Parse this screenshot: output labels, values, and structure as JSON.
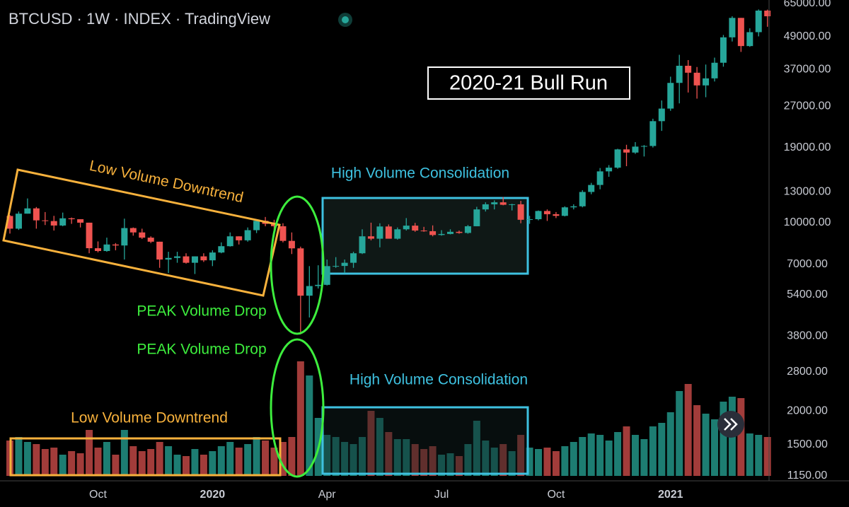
{
  "chart_data": {
    "type": "candlestick",
    "title": "BTCUSD · 1W · INDEX · TradingView",
    "log_scale": true,
    "grid": false,
    "up_color": "#26a69a",
    "down_color": "#ef5350",
    "volume_up_color": "#1d7d72",
    "volume_down_color": "#a23c3a",
    "ylim": [
      1150,
      65000
    ],
    "yticks": [
      {
        "value": 1150,
        "label": "1150.00"
      },
      {
        "value": 1500,
        "label": "1500.00"
      },
      {
        "value": 2000,
        "label": "2000.00"
      },
      {
        "value": 2800,
        "label": "2800.00"
      },
      {
        "value": 3800,
        "label": "3800.00"
      },
      {
        "value": 5400,
        "label": "5400.00"
      },
      {
        "value": 7000,
        "label": "7000.00"
      },
      {
        "value": 10000,
        "label": "10000.00"
      },
      {
        "value": 13000,
        "label": "13000.00"
      },
      {
        "value": 19000,
        "label": "19000.00"
      },
      {
        "value": 27000,
        "label": "27000.00"
      },
      {
        "value": 37000,
        "label": "37000.00"
      },
      {
        "value": 49000,
        "label": "49000.00"
      },
      {
        "value": 65000,
        "label": "65000.00"
      }
    ],
    "categories": [
      null,
      null,
      null,
      null,
      null,
      null,
      null,
      null,
      null,
      null,
      "Oct",
      null,
      null,
      null,
      null,
      null,
      null,
      null,
      null,
      null,
      null,
      null,
      null,
      "2020",
      null,
      null,
      null,
      null,
      null,
      null,
      null,
      null,
      null,
      null,
      null,
      null,
      "Apr",
      null,
      null,
      null,
      null,
      null,
      null,
      null,
      null,
      null,
      null,
      null,
      null,
      "Jul",
      null,
      null,
      null,
      null,
      null,
      null,
      null,
      null,
      null,
      null,
      null,
      null,
      "Oct",
      null,
      null,
      null,
      null,
      null,
      null,
      null,
      null,
      null,
      null,
      null,
      null,
      "2021",
      null,
      null,
      null,
      null,
      null,
      null,
      null,
      null,
      null,
      null,
      null
    ],
    "open": [
      10590,
      9500,
      10800,
      11300,
      10200,
      10140,
      9760,
      10380,
      10300,
      10000,
      8040,
      7850,
      8300,
      8230,
      9550,
      9200,
      8800,
      8500,
      7300,
      7400,
      7500,
      7100,
      7500,
      7250,
      7750,
      8180,
      8900,
      8600,
      9380,
      10160,
      9900,
      9700,
      8560,
      8030,
      5360,
      5820,
      5880,
      6900,
      6910,
      7100,
      7700,
      8900,
      8720,
      9680,
      8720,
      9450,
      9750,
      9350,
      9300,
      9000,
      9080,
      9250,
      9160,
      9700,
      11200,
      11700,
      11900,
      11650,
      11700,
      10250,
      10300,
      11050,
      10750,
      10600,
      11400,
      11500,
      13000,
      13800,
      15500,
      16000,
      18700,
      18200,
      19150,
      19250,
      23800,
      26500,
      33000,
      38200,
      36000,
      32300,
      34300,
      39200,
      48700,
      57500,
      45200,
      50900,
      61200
    ],
    "high": [
      10680,
      11000,
      12300,
      11430,
      10950,
      10600,
      10900,
      10450,
      10300,
      10000,
      8520,
      8800,
      8400,
      10350,
      9600,
      9500,
      8900,
      8500,
      7800,
      7800,
      7700,
      7500,
      7700,
      7900,
      8450,
      9200,
      8900,
      9600,
      10200,
      10500,
      10250,
      9950,
      9200,
      8150,
      6900,
      6950,
      7300,
      7450,
      7300,
      7800,
      9450,
      10000,
      9950,
      9850,
      9600,
      10400,
      9980,
      9650,
      9770,
      9380,
      9450,
      9350,
      9800,
      11450,
      11900,
      12100,
      12450,
      11750,
      12050,
      10600,
      11100,
      11200,
      10950,
      11500,
      11700,
      13200,
      14050,
      15950,
      16350,
      18800,
      19450,
      19900,
      19400,
      24300,
      28400,
      34800,
      41950,
      40100,
      37800,
      38600,
      40950,
      49700,
      58300,
      57500,
      52600,
      61800,
      61700
    ],
    "low": [
      9110,
      9400,
      10800,
      9500,
      9800,
      9350,
      9700,
      9900,
      9600,
      7700,
      7760,
      7800,
      7900,
      7300,
      8950,
      8700,
      8400,
      6800,
      6500,
      7100,
      7050,
      6450,
      7150,
      6900,
      7700,
      8150,
      8300,
      8500,
      9150,
      9700,
      9400,
      8450,
      7650,
      3850,
      4450,
      5700,
      5850,
      6800,
      6500,
      6800,
      7650,
      8600,
      8100,
      8800,
      8650,
      9350,
      9250,
      9250,
      8900,
      8950,
      9050,
      9100,
      9100,
      9700,
      11000,
      11200,
      11600,
      11100,
      9950,
      9900,
      10200,
      10150,
      10400,
      10550,
      11200,
      11400,
      12750,
      13300,
      14800,
      15850,
      16200,
      18000,
      17600,
      19000,
      21900,
      26000,
      27700,
      30400,
      28850,
      29200,
      33400,
      37900,
      47000,
      43000,
      44900,
      49100,
      53300
    ],
    "close": [
      9500,
      10800,
      11300,
      10200,
      10140,
      9760,
      10380,
      10300,
      10000,
      8040,
      7850,
      8300,
      8230,
      9550,
      9200,
      8800,
      8500,
      7300,
      7400,
      7500,
      7100,
      7500,
      7250,
      7750,
      8180,
      8900,
      8600,
      9380,
      10160,
      9900,
      9700,
      8560,
      8030,
      5360,
      5820,
      5880,
      6900,
      6910,
      7100,
      7700,
      8900,
      8720,
      9680,
      8720,
      9450,
      9750,
      9350,
      9300,
      9000,
      9080,
      9250,
      9160,
      9700,
      11200,
      11700,
      11900,
      11650,
      11700,
      10250,
      10300,
      11050,
      10750,
      10600,
      11400,
      11500,
      13000,
      13800,
      15500,
      16000,
      18700,
      18200,
      19150,
      19250,
      23800,
      26500,
      33000,
      38200,
      36000,
      32300,
      34300,
      39200,
      48700,
      57500,
      45200,
      50900,
      61200,
      58300
    ],
    "volume": [
      50,
      55,
      48,
      45,
      38,
      40,
      30,
      35,
      32,
      65,
      40,
      48,
      30,
      65,
      42,
      35,
      38,
      48,
      42,
      30,
      28,
      38,
      30,
      35,
      42,
      48,
      40,
      45,
      55,
      50,
      40,
      48,
      55,
      162,
      142,
      82,
      58,
      55,
      48,
      45,
      55,
      92,
      82,
      62,
      52,
      52,
      45,
      38,
      42,
      30,
      32,
      28,
      45,
      78,
      50,
      40,
      45,
      35,
      58,
      40,
      38,
      40,
      35,
      42,
      48,
      55,
      60,
      58,
      50,
      62,
      70,
      58,
      52,
      70,
      75,
      90,
      120,
      130,
      100,
      88,
      80,
      105,
      112,
      110,
      60,
      58,
      55
    ],
    "annotations": [
      "Low Volume Downtrend",
      "High Volume Consolidation",
      "PEAK Volume Drop",
      "PEAK Volume Drop",
      "High Volume Consolidation",
      "Low Volume Downtrend",
      "2020-21 Bull Run"
    ]
  }
}
